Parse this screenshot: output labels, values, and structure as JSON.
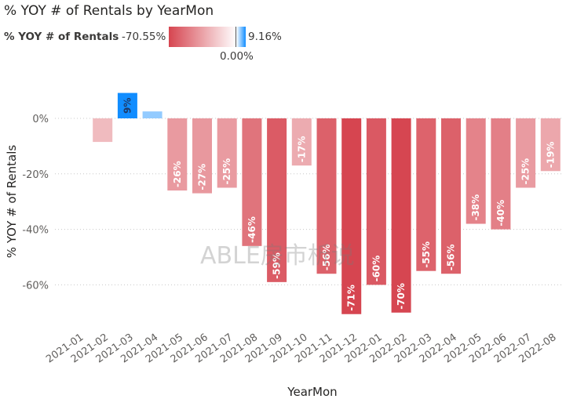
{
  "title": "% YOY # of Rentals by YearMon",
  "legend": {
    "label": "% YOY # of Rentals",
    "min": "-70.55%",
    "max": "9.16%",
    "mid": "0.00%"
  },
  "watermark": "ABLE房市析说",
  "colors": {
    "negative": "#d64550",
    "positive": "#118dff",
    "grid": "#c8c8c8",
    "text": "#605e5c"
  },
  "chart_data": {
    "type": "bar",
    "title": "% YOY # of Rentals by YearMon",
    "xlabel": "YearMon",
    "ylabel": "% YOY # of Rentals",
    "ylim": [
      -70.55,
      9.16
    ],
    "yticks": [
      0,
      -20,
      -40,
      -60
    ],
    "ytick_labels": [
      "0%",
      "-20%",
      "-40%",
      "-60%"
    ],
    "categories": [
      "2021-01",
      "2021-02",
      "2021-03",
      "2021-04",
      "2021-05",
      "2021-06",
      "2021-07",
      "2021-08",
      "2021-09",
      "2021-10",
      "2021-11",
      "2021-12",
      "2022-01",
      "2022-02",
      "2022-03",
      "2022-04",
      "2022-05",
      "2022-06",
      "2022-07",
      "2022-08"
    ],
    "values": [
      0,
      -8.5,
      9.16,
      2.5,
      -26,
      -27,
      -25,
      -46,
      -59,
      -17,
      -56,
      -70.55,
      -60,
      -70,
      -55,
      -56,
      -38,
      -40,
      -25,
      -19
    ],
    "data_labels": [
      "",
      "",
      "9%",
      "",
      "-26%",
      "-27%",
      "-25%",
      "-46%",
      "-59%",
      "-17%",
      "-56%",
      "-71%",
      "-60%",
      "-70%",
      "-55%",
      "-56%",
      "-38%",
      "-40%",
      "-25%",
      "-19%"
    ]
  }
}
